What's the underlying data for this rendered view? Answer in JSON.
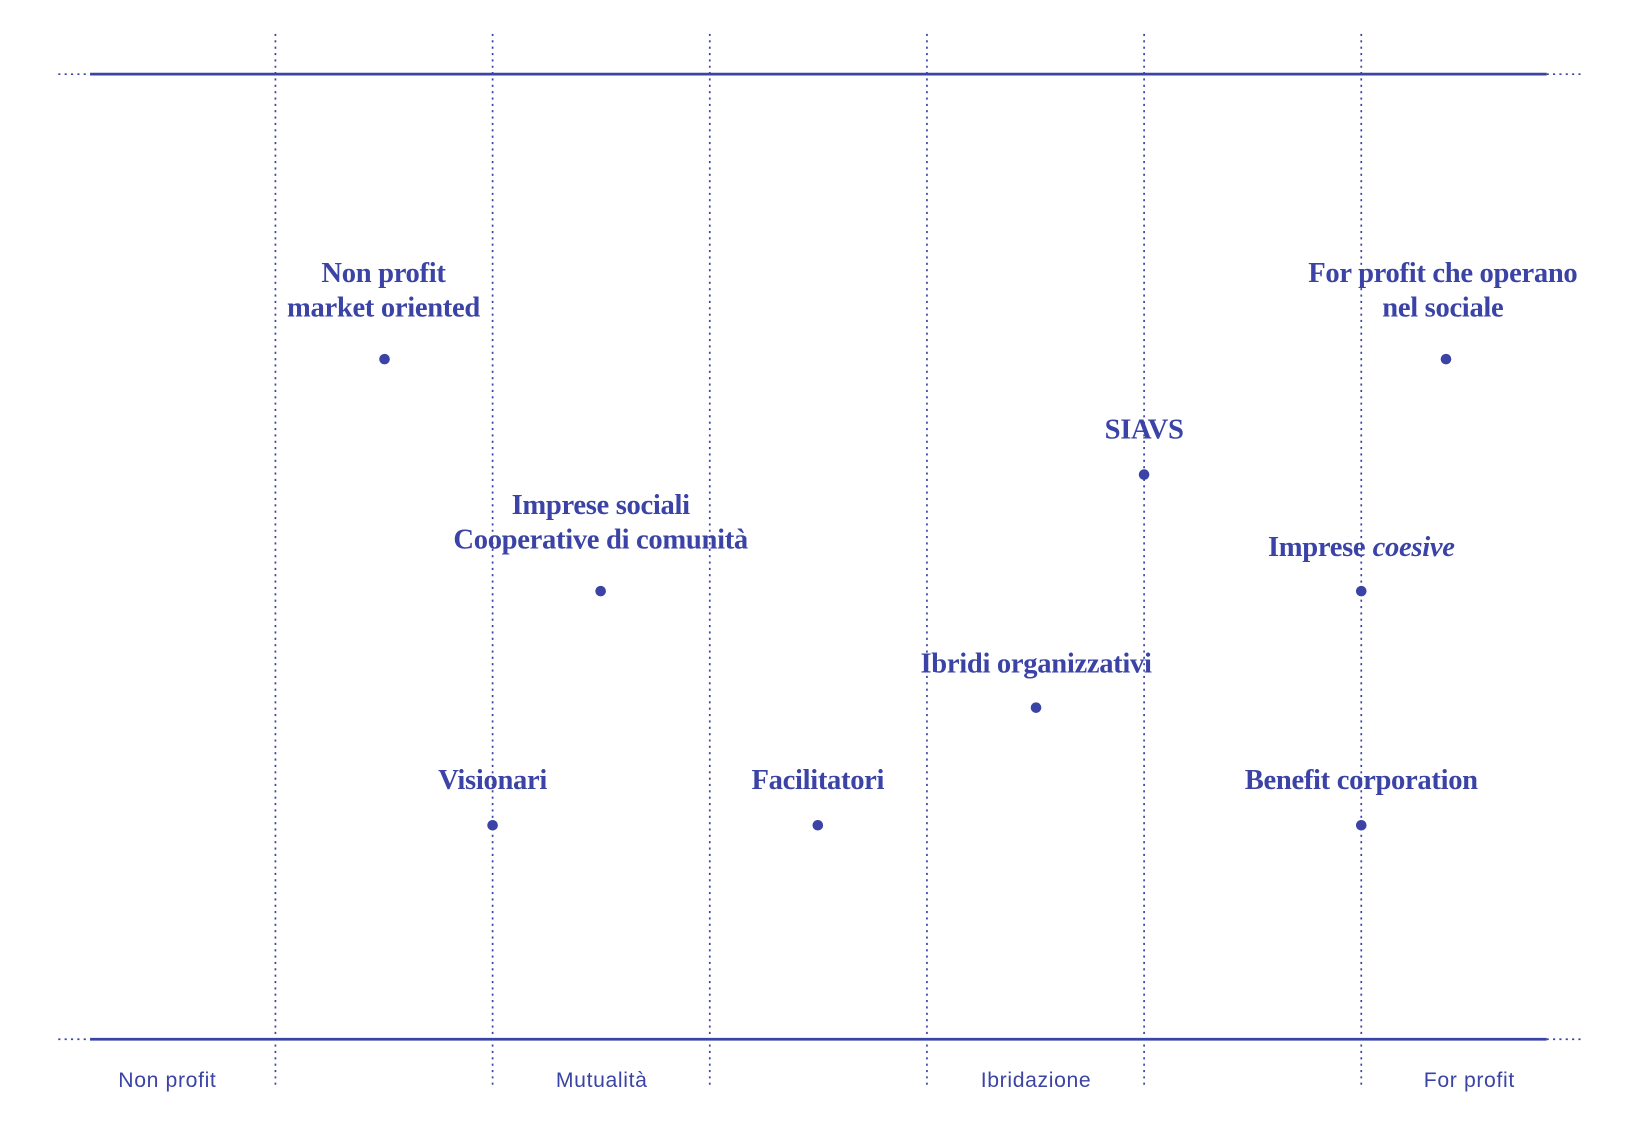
{
  "nodes": [
    {
      "lines": [
        "Non profit",
        "market oriented"
      ]
    },
    {
      "lines": [
        "For profit che operano",
        "nel sociale"
      ]
    },
    {
      "lines": [
        "SIAVS"
      ]
    },
    {
      "lines": [
        "Imprese sociali",
        "Cooperative di comunità"
      ]
    },
    {
      "lines": [
        "Imprese"
      ],
      "italic": "coesive"
    },
    {
      "lines": [
        "Ibridi organizzativi"
      ]
    },
    {
      "lines": [
        "Visionari"
      ]
    },
    {
      "lines": [
        "Facilitatori"
      ]
    },
    {
      "lines": [
        "Benefit corporation"
      ]
    }
  ],
  "axis_labels": [
    "Non profit",
    "Mutualità",
    "Ibridazione",
    "For profit"
  ]
}
